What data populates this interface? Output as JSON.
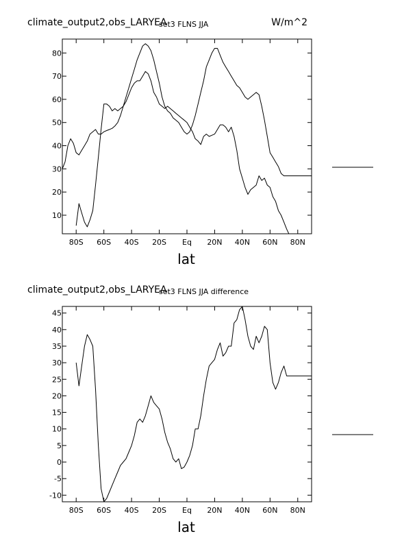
{
  "chart_data": [
    {
      "type": "line",
      "title": "climate_output2,obs_LARYEA",
      "subtitle": "set3 FLNS JJA",
      "units": "W/m^2",
      "xlabel": "lat",
      "ylabel": "",
      "xlim": [
        -90,
        90
      ],
      "ylim": [
        2,
        86
      ],
      "x_ticks": [
        -80,
        -60,
        -40,
        -20,
        0,
        20,
        40,
        60,
        80
      ],
      "x_tick_labels": [
        "80S",
        "60S",
        "40S",
        "20S",
        "Eq",
        "20N",
        "40N",
        "60N",
        "80N"
      ],
      "y_ticks": [
        10,
        20,
        30,
        40,
        50,
        60,
        70,
        80
      ],
      "y_tick_labels": [
        "10",
        "20",
        "30",
        "40",
        "50",
        "60",
        "70",
        "80"
      ],
      "grid": false,
      "legend": "right",
      "legend_entries": [
        "",
        ""
      ],
      "series": [
        {
          "x": [
            -80,
            -78,
            -76,
            -74,
            -72,
            -70,
            -68,
            -66,
            -64,
            -62,
            -60,
            -58,
            -56,
            -54,
            -52,
            -50,
            -48,
            -46,
            -44,
            -42,
            -40,
            -38,
            -36,
            -34,
            -32,
            -30,
            -28,
            -26,
            -24,
            -22,
            -20,
            -18,
            -16,
            -14,
            -12,
            -10,
            -8,
            -6,
            -4,
            -2,
            0,
            2,
            4,
            6,
            8,
            10,
            12,
            14,
            16,
            18,
            20,
            22,
            24,
            26,
            28,
            30,
            32,
            34,
            36,
            38,
            40,
            42,
            44,
            46,
            48,
            50,
            52,
            54,
            56,
            58,
            60,
            62,
            64,
            66,
            68,
            70,
            72,
            74,
            76,
            78,
            80,
            82,
            84,
            86,
            88,
            90
          ],
          "values": [
            5.5,
            15,
            11,
            7,
            5,
            8,
            12,
            23,
            35,
            47,
            58,
            58,
            57,
            55,
            56,
            55,
            56,
            57,
            59,
            62,
            65,
            67,
            68,
            68,
            70,
            72,
            71,
            68,
            63,
            61,
            58,
            57,
            56,
            57,
            56,
            55,
            54,
            53,
            52,
            51,
            50,
            48,
            46,
            43,
            42,
            40.5,
            44,
            45,
            44,
            44.5,
            45,
            47,
            49,
            49,
            48,
            46,
            48,
            44,
            38,
            30,
            26,
            22,
            19,
            21,
            22,
            23,
            27,
            25,
            26,
            23,
            22,
            18,
            16,
            12,
            10,
            7,
            4,
            1.5,
            0,
            0,
            0,
            0,
            0,
            0,
            0,
            0
          ]
        },
        {
          "x": [
            -90,
            -88,
            -86,
            -84,
            -82,
            -80,
            -78,
            -76,
            -74,
            -72,
            -70,
            -68,
            -66,
            -64,
            -62,
            -60,
            -58,
            -56,
            -54,
            -52,
            -50,
            -48,
            -46,
            -44,
            -42,
            -40,
            -38,
            -36,
            -34,
            -32,
            -30,
            -28,
            -26,
            -24,
            -22,
            -20,
            -18,
            -16,
            -14,
            -12,
            -10,
            -8,
            -6,
            -4,
            -2,
            0,
            2,
            4,
            6,
            8,
            10,
            12,
            14,
            16,
            18,
            20,
            22,
            24,
            26,
            28,
            30,
            32,
            34,
            36,
            38,
            40,
            42,
            44,
            46,
            48,
            50,
            52,
            54,
            56,
            58,
            60,
            62,
            64,
            66,
            68,
            70,
            72,
            74,
            76,
            78,
            80,
            82,
            84,
            86,
            88,
            90
          ],
          "values": [
            30,
            33,
            40,
            43,
            41,
            37,
            36,
            38,
            40,
            42,
            45,
            46,
            47,
            45,
            45,
            46,
            46.5,
            47,
            47.5,
            48.5,
            50,
            53,
            57,
            61,
            65,
            69,
            73,
            77,
            80,
            83,
            84,
            83,
            81,
            77,
            72,
            67,
            61,
            57,
            55,
            54,
            52,
            51,
            50,
            48,
            46,
            45,
            46,
            49,
            53,
            58,
            63,
            68,
            74,
            77,
            80,
            82,
            82,
            79,
            76,
            74,
            72,
            70,
            68,
            66,
            65,
            63,
            61,
            60,
            61,
            62,
            63,
            62,
            57,
            51,
            44,
            37,
            35,
            33,
            31,
            28,
            27,
            27,
            27,
            27,
            27,
            27,
            27,
            27,
            27,
            27,
            27
          ]
        }
      ]
    },
    {
      "type": "line",
      "title": "climate_output2,obs_LARYEA",
      "subtitle": "set3 FLNS JJA difference",
      "units": "",
      "xlabel": "lat",
      "ylabel": "",
      "xlim": [
        -90,
        90
      ],
      "ylim": [
        -12,
        47
      ],
      "x_ticks": [
        -80,
        -60,
        -40,
        -20,
        0,
        20,
        40,
        60,
        80
      ],
      "x_tick_labels": [
        "80S",
        "60S",
        "40S",
        "20S",
        "Eq",
        "20N",
        "40N",
        "60N",
        "80N"
      ],
      "y_ticks": [
        -10,
        -5,
        0,
        5,
        10,
        15,
        20,
        25,
        30,
        35,
        40,
        45
      ],
      "y_tick_labels": [
        "-10",
        "-5",
        "0",
        "5",
        "10",
        "15",
        "20",
        "25",
        "30",
        "35",
        "40",
        "45"
      ],
      "grid": false,
      "legend": "right",
      "legend_entries": [
        ""
      ],
      "series": [
        {
          "x": [
            -80,
            -78,
            -76,
            -74,
            -72,
            -70,
            -68,
            -66,
            -64,
            -62,
            -60,
            -58,
            -56,
            -54,
            -52,
            -50,
            -48,
            -46,
            -44,
            -42,
            -40,
            -38,
            -36,
            -34,
            -32,
            -30,
            -28,
            -26,
            -24,
            -22,
            -20,
            -18,
            -16,
            -14,
            -12,
            -10,
            -8,
            -6,
            -4,
            -2,
            0,
            2,
            4,
            6,
            8,
            10,
            12,
            14,
            16,
            18,
            20,
            22,
            24,
            26,
            28,
            30,
            32,
            34,
            36,
            38,
            40,
            42,
            44,
            46,
            48,
            50,
            52,
            54,
            56,
            58,
            60,
            62,
            64,
            66,
            68,
            70,
            72,
            74,
            76,
            78,
            80,
            82,
            84,
            86,
            88,
            90
          ],
          "values": [
            30,
            23,
            29,
            35,
            38.5,
            37,
            35,
            22,
            5,
            -8,
            -12,
            -11,
            -9,
            -7,
            -5,
            -3,
            -1,
            0,
            1,
            3,
            5,
            8,
            12,
            13,
            12,
            14,
            17,
            20,
            18,
            17,
            16,
            13,
            9,
            6,
            4,
            1,
            0,
            1,
            -2,
            -1.5,
            0,
            2,
            5,
            10,
            10,
            14,
            20,
            25,
            29,
            30,
            31,
            34,
            36,
            32,
            33,
            35,
            35,
            42,
            43,
            46,
            47,
            43,
            38,
            35,
            34,
            38,
            36,
            38,
            41,
            40,
            30,
            24,
            22,
            24,
            27,
            29,
            26,
            26,
            26,
            26,
            26,
            26,
            26,
            26,
            26,
            26
          ]
        }
      ]
    }
  ]
}
